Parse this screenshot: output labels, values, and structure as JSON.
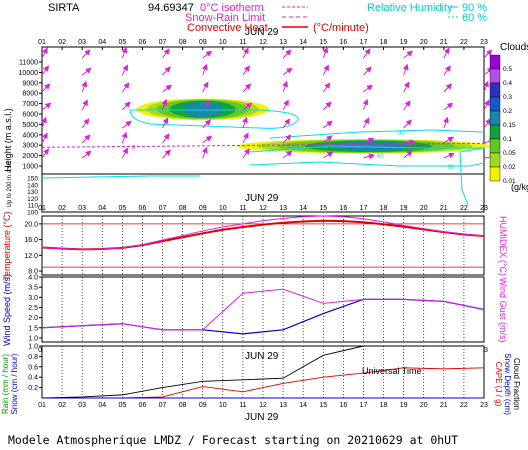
{
  "header": {
    "station": "SIRTA",
    "station_value": "94.69347",
    "legend_isotherm": "0°C isotherm",
    "legend_snow_rain": "Snow-Rain Limit",
    "legend_convective": "Convective Heat",
    "legend_convective_unit": "(°C/minute)",
    "legend_rh": "Relative Humidity",
    "rh_levels": [
      "90 %",
      "60 %"
    ]
  },
  "colors": {
    "magenta": "#e020e0",
    "cyan": "#00e0e0",
    "red": "#e00000",
    "blue": "#0000cc",
    "dark": "#000000"
  },
  "chart_data": [
    {
      "type": "heatmap",
      "panel": "clouds-height",
      "date_label": "JUN 29",
      "x": [
        "01",
        "02",
        "03",
        "04",
        "05",
        "06",
        "07",
        "08",
        "09",
        "10",
        "11",
        "12",
        "13",
        "14",
        "15",
        "16",
        "17",
        "18",
        "19",
        "20",
        "21",
        "22",
        "23"
      ],
      "ylabel": "Height (m a.s.l.)",
      "y_ticks_upper": [
        "11000",
        "10000",
        "9000",
        "8000",
        "7000",
        "6000",
        "5000",
        "4000",
        "3000",
        "2000",
        "1000"
      ],
      "y_ticks_lower": [
        "150",
        "140",
        "130",
        "120",
        "110",
        "100"
      ],
      "ylabel_lower": "Up to 200 m a.s.l.",
      "colorbar_title": "Clouds",
      "colorbar_unit": "(g/kg)",
      "colorbar_labels": [
        "0.5",
        "0.4",
        "0.3",
        "0.2",
        "0.15",
        "0.1",
        "0.05",
        "0.02",
        "0.01"
      ],
      "colorbar_colors": [
        "#9b00d8",
        "#b050e8",
        "#3030c0",
        "#1858c8",
        "#1888a8",
        "#10a040",
        "#60c820",
        "#a0d820",
        "#f0f000"
      ],
      "cloud_layers": [
        {
          "hours": [
            6,
            12
          ],
          "height_m": [
            5600,
            7300
          ],
          "max_gkg": 0.2
        },
        {
          "hours": [
            11,
            23
          ],
          "height_m": [
            2400,
            3400
          ],
          "max_gkg": 0.3
        }
      ],
      "isotherm_label": "0",
      "isotherm_height_m": 2800,
      "rh_contour_labels": [
        "90",
        "60",
        "90"
      ]
    },
    {
      "type": "line",
      "panel": "temperature",
      "ylabel": "Temperature (°C)",
      "ylabel_right": "HUMIDEX (°C)",
      "y_ticks": [
        "20.0",
        "16.0",
        "12.0",
        "8.0"
      ],
      "ylim": [
        7,
        22
      ],
      "x": [
        1,
        2,
        3,
        4,
        5,
        6,
        7,
        8,
        9,
        10,
        11,
        12,
        13,
        14,
        15,
        16,
        17,
        18,
        19,
        20,
        21,
        22,
        23
      ],
      "series": [
        {
          "values": [
            14.0,
            13.7,
            13.5,
            13.6,
            13.9,
            14.6,
            15.6,
            16.6,
            17.6,
            18.5,
            19.2,
            19.8,
            20.3,
            20.6,
            20.8,
            20.7,
            20.4,
            19.9,
            19.3,
            18.6,
            17.9,
            17.3,
            16.9
          ]
        },
        {
          "values": [
            14.0,
            13.7,
            13.5,
            13.6,
            13.9,
            14.7,
            15.9,
            17.0,
            18.2,
            19.2,
            20.0,
            20.8,
            21.4,
            21.8,
            22.0,
            21.8,
            21.3,
            20.5,
            19.6,
            18.8,
            18.0,
            17.4,
            16.9
          ]
        }
      ],
      "reference_lines": [
        20.0,
        9.0
      ]
    },
    {
      "type": "line",
      "panel": "wind",
      "ylabel": "Wind Speed (m/s)",
      "ylabel_right": "Wind Gust (m/s)",
      "y_ticks": [
        "4.0",
        "3.5",
        "3.0",
        "2.5",
        "2.0",
        "1.5",
        "1.0"
      ],
      "ylim": [
        0.8,
        4.0
      ],
      "x": [
        1,
        3,
        5,
        7,
        9,
        11,
        13,
        15,
        17,
        19,
        21,
        23
      ],
      "series": [
        {
          "values": [
            1.5,
            1.6,
            1.7,
            1.4,
            1.4,
            1.2,
            1.4,
            2.2,
            2.9,
            2.9,
            2.8,
            2.4
          ]
        },
        {
          "values": [
            1.5,
            1.6,
            1.7,
            1.4,
            1.4,
            3.2,
            3.4,
            2.7,
            2.9,
            2.9,
            2.8,
            2.4
          ]
        }
      ]
    },
    {
      "type": "line",
      "panel": "precipitation",
      "ylabel_left": [
        "Rain (mm / hour)",
        "Snow (cm / hour)"
      ],
      "ylabel_right": [
        "CAPE (J / g)",
        "Snow Depth (cm)",
        "Cloud Fraction"
      ],
      "y_ticks": [
        "1.0",
        "0.8",
        "0.6",
        "0.4",
        "0.2"
      ],
      "ylim": [
        0,
        1.0
      ],
      "x": [
        1,
        3,
        5,
        7,
        9,
        11,
        13,
        15,
        17,
        19,
        21,
        23
      ],
      "series": [
        {
          "values": [
            0.0,
            0.02,
            0.06,
            0.2,
            0.32,
            0.35,
            0.38,
            0.82,
            1.0,
            1.0,
            1.0,
            1.0
          ]
        },
        {
          "values": [
            0.0,
            0.0,
            0.0,
            0.02,
            0.22,
            0.12,
            0.28,
            0.4,
            0.48,
            0.58,
            0.56,
            0.58
          ]
        },
        {
          "values": [
            0.0,
            0.0,
            0.0,
            0.0,
            0.0,
            0.0,
            0.0,
            0.0,
            0.0,
            0.0,
            0.0,
            0.0
          ]
        }
      ],
      "xlabel": "Universal Time",
      "date_label": "JUN 29"
    }
  ],
  "footer": {
    "title": "Modele Atmospherique LMDZ / Forecast starting on 20210629 at 0hUT"
  }
}
